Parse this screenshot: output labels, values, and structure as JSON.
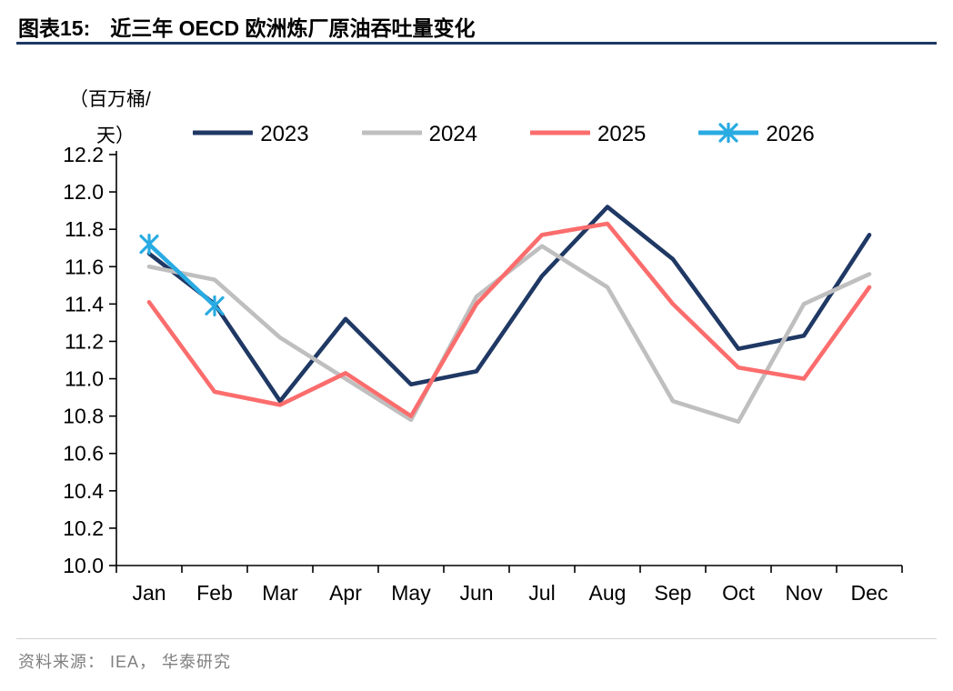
{
  "header": {
    "tag": "图表15:",
    "title": "近三年 OECD 欧洲炼厂原油吞吐量变化"
  },
  "footer": {
    "source": "资料来源： IEA， 华泰研究"
  },
  "chart_data": {
    "type": "line",
    "title": "近三年 OECD 欧洲炼厂原油吞吐量变化",
    "unit_label_line1": "（百万桶/",
    "unit_label_line2": "天）",
    "categories": [
      "Jan",
      "Feb",
      "Mar",
      "Apr",
      "May",
      "Jun",
      "Jul",
      "Aug",
      "Sep",
      "Oct",
      "Nov",
      "Dec"
    ],
    "ylim": [
      10.0,
      12.2
    ],
    "ytick_step": 0.2,
    "grid": false,
    "legend_position": "top",
    "series": [
      {
        "name": "2023",
        "color": "#1F3864",
        "marker": null,
        "values": [
          11.67,
          11.4,
          10.88,
          11.32,
          10.97,
          11.04,
          11.55,
          11.92,
          11.64,
          11.16,
          11.23,
          11.77
        ]
      },
      {
        "name": "2024",
        "color": "#BFBFBF",
        "marker": null,
        "values": [
          11.6,
          11.53,
          11.22,
          11.0,
          10.78,
          11.44,
          11.71,
          11.49,
          10.88,
          10.77,
          11.4,
          11.56
        ]
      },
      {
        "name": "2025",
        "color": "#FB6D6D",
        "marker": null,
        "values": [
          11.41,
          10.93,
          10.86,
          11.03,
          10.8,
          11.4,
          11.77,
          11.83,
          11.4,
          11.06,
          11.0,
          11.49
        ]
      },
      {
        "name": "2026",
        "color": "#29ABE2",
        "marker": "star",
        "values": [
          11.72,
          11.39,
          null,
          null,
          null,
          null,
          null,
          null,
          null,
          null,
          null,
          null
        ]
      }
    ]
  }
}
